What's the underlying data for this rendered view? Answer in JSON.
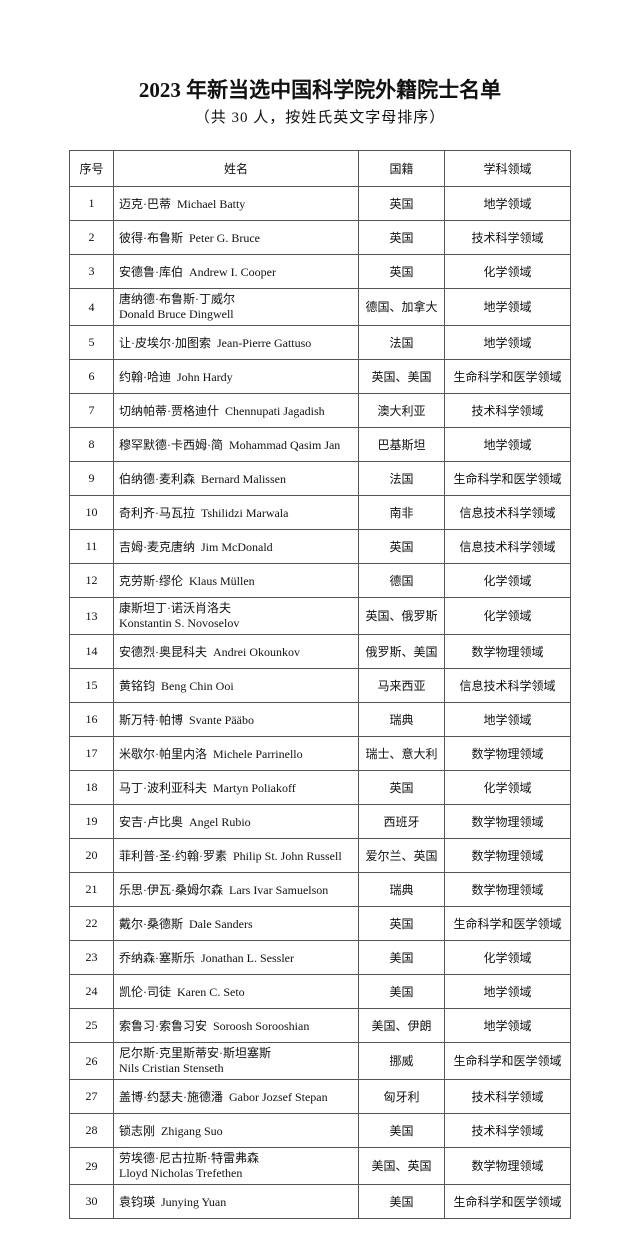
{
  "header": {
    "title": "2023 年新当选中国科学院外籍院士名单",
    "subtitle": "（共 30 人，按姓氏英文字母排序）"
  },
  "table": {
    "columns": [
      "序号",
      "姓名",
      "国籍",
      "学科领域"
    ],
    "rows": [
      [
        1,
        "迈克·巴蒂  Michael Batty",
        "英国",
        "地学领域"
      ],
      [
        2,
        "彼得·布鲁斯  Peter G. Bruce",
        "英国",
        "技术科学领域"
      ],
      [
        3,
        "安德鲁·库伯  Andrew I. Cooper",
        "英国",
        "化学领域"
      ],
      [
        4,
        [
          "唐纳德·布鲁斯·丁威尔",
          "Donald Bruce  Dingwell"
        ],
        "德国、加拿大",
        "地学领域"
      ],
      [
        5,
        "让·皮埃尔·加图索  Jean-Pierre Gattuso",
        "法国",
        "地学领域"
      ],
      [
        6,
        "约翰·哈迪  John Hardy",
        "英国、美国",
        "生命科学和医学领域"
      ],
      [
        7,
        "切纳帕蒂·贾格迪什  Chennupati Jagadish",
        "澳大利亚",
        "技术科学领域"
      ],
      [
        8,
        "穆罕默德·卡西姆·简  Mohammad Qasim Jan",
        "巴基斯坦",
        "地学领域"
      ],
      [
        9,
        "伯纳德·麦利森  Bernard Malissen",
        "法国",
        "生命科学和医学领域"
      ],
      [
        10,
        "奇利齐·马瓦拉  Tshilidzi Marwala",
        "南非",
        "信息技术科学领域"
      ],
      [
        11,
        "吉姆·麦克唐纳  Jim McDonald",
        "英国",
        "信息技术科学领域"
      ],
      [
        12,
        "克劳斯·缪伦  Klaus Müllen",
        "德国",
        "化学领域"
      ],
      [
        13,
        [
          "康斯坦丁·诺沃肖洛夫",
          "Konstantin S. Novoselov"
        ],
        "英国、俄罗斯",
        "化学领域"
      ],
      [
        14,
        "安德烈·奥昆科夫  Andrei Okounkov",
        "俄罗斯、美国",
        "数学物理领域"
      ],
      [
        15,
        "黄铭钧  Beng Chin Ooi",
        "马来西亚",
        "信息技术科学领域"
      ],
      [
        16,
        "斯万特·帕博  Svante Pääbo",
        "瑞典",
        "地学领域"
      ],
      [
        17,
        "米歇尔·帕里内洛  Michele Parrinello",
        "瑞士、意大利",
        "数学物理领域"
      ],
      [
        18,
        "马丁·波利亚科夫  Martyn Poliakoff",
        "英国",
        "化学领域"
      ],
      [
        19,
        "安吉·卢比奥  Angel Rubio",
        "西班牙",
        "数学物理领域"
      ],
      [
        20,
        "菲利普·圣·约翰·罗素  Philip St. John Russell",
        "爱尔兰、英国",
        "数学物理领域"
      ],
      [
        21,
        "乐思·伊瓦·桑姆尔森  Lars Ivar Samuelson",
        "瑞典",
        "数学物理领域"
      ],
      [
        22,
        "戴尔·桑德斯  Dale Sanders",
        "英国",
        "生命科学和医学领域"
      ],
      [
        23,
        "乔纳森·塞斯乐  Jonathan L. Sessler",
        "美国",
        "化学领域"
      ],
      [
        24,
        "凯伦·司徒  Karen C. Seto",
        "美国",
        "地学领域"
      ],
      [
        25,
        "索鲁习·索鲁习安  Soroosh Sorooshian",
        "美国、伊朗",
        "地学领域"
      ],
      [
        26,
        [
          "尼尔斯·克里斯蒂安·斯坦塞斯",
          "Nils Cristian Stenseth"
        ],
        "挪威",
        "生命科学和医学领域"
      ],
      [
        27,
        "盖博·约瑟夫·施德潘  Gabor Jozsef Stepan",
        "匈牙利",
        "技术科学领域"
      ],
      [
        28,
        "锁志刚  Zhigang Suo",
        "美国",
        "技术科学领域"
      ],
      [
        29,
        [
          "劳埃德·尼古拉斯·特雷弗森",
          "Lloyd Nicholas Trefethen"
        ],
        "美国、英国",
        "数学物理领域"
      ],
      [
        30,
        "袁钧瑛  Junying Yuan",
        "美国",
        "生命科学和医学领域"
      ]
    ]
  }
}
